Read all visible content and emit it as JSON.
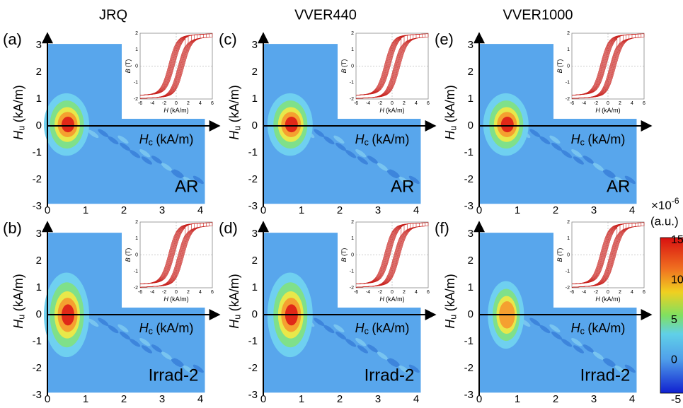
{
  "columns": [
    "JRQ",
    "VVER440",
    "VVER1000"
  ],
  "panels": [
    {
      "label": "(a)",
      "condition": "AR"
    },
    {
      "label": "(b)",
      "condition": "Irrad-2"
    },
    {
      "label": "(c)",
      "condition": "AR"
    },
    {
      "label": "(d)",
      "condition": "Irrad-2"
    },
    {
      "label": "(e)",
      "condition": "AR"
    },
    {
      "label": "(f)",
      "condition": "Irrad-2"
    }
  ],
  "main_axes": {
    "x_label": {
      "symbol": "H",
      "subscript": "c",
      "unit": "(kA/m)"
    },
    "y_label": {
      "symbol": "H",
      "subscript": "u",
      "unit": "(kA/m)"
    },
    "x_ticks": [
      "0",
      "1",
      "2",
      "3",
      "4"
    ],
    "y_ticks": [
      "-3",
      "-2",
      "-1",
      "0",
      "1",
      "2",
      "3"
    ]
  },
  "inset_axes": {
    "x_label": {
      "symbol": "H",
      "unit": "(kA/m)"
    },
    "y_label": {
      "symbol": "B",
      "unit": "(T)"
    },
    "x_ticks": [
      "-6",
      "-4",
      "-2",
      "0",
      "2",
      "4",
      "6"
    ],
    "y_ticks": [
      "-2",
      "-1",
      "0",
      "1",
      "2"
    ]
  },
  "colorbar": {
    "scale": "×10",
    "exponent": "-6",
    "unit": "(a.u.)",
    "ticks": [
      "15",
      "10",
      "5",
      "0",
      "-5"
    ]
  }
}
